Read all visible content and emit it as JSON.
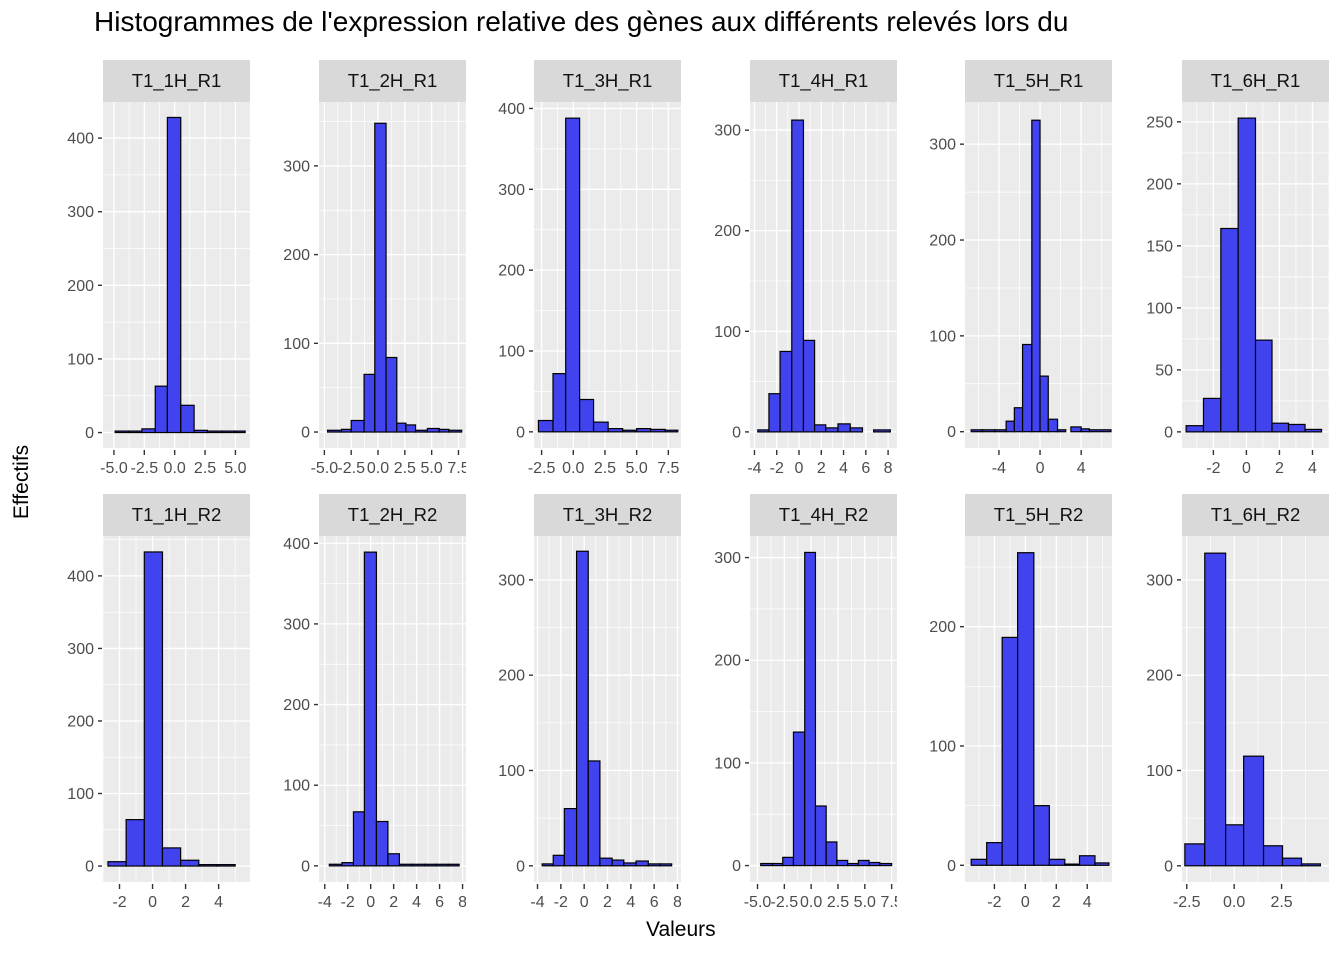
{
  "title": "Histogrammes de l'expression relative des gènes aux différents relevés lors du",
  "colors": {
    "bar_fill": "#4143EE",
    "bar_stroke": "#000000",
    "panel_bg": "#EBEBEB",
    "strip_bg": "#D9D9D9",
    "grid": "#FFFFFF",
    "axis_text": "#4D4D4D",
    "tick_mark": "#333333",
    "strip_text": "#111111",
    "title_text": "#000000"
  },
  "chart_data": {
    "type": "bar",
    "subtype": "faceted-histograms",
    "title": "Histogrammes de l'expression relative des gènes aux différents relevés lors du",
    "xlabel": "Valeurs",
    "ylabel": "Effectifs",
    "facet_rows": 2,
    "facet_cols": 6,
    "grid": "on",
    "legend": "none",
    "panels": [
      {
        "title": "T1_1H_R1",
        "x_domain": [
          -5.9,
          6.2
        ],
        "y_domain": [
          -21,
          449
        ],
        "x_ticks": [
          -5,
          -2.5,
          0,
          2.5,
          5
        ],
        "x_tick_labels": [
          "-5.0",
          "-2.5",
          "0.0",
          "2.5",
          "5.0"
        ],
        "y_ticks": [
          0,
          100,
          200,
          300,
          400
        ],
        "bars": [
          [
            -4.9,
            -3.8,
            2
          ],
          [
            -3.8,
            -2.7,
            2
          ],
          [
            -2.7,
            -1.6,
            5
          ],
          [
            -1.6,
            -0.6,
            63
          ],
          [
            -0.6,
            0.5,
            428
          ],
          [
            0.5,
            1.6,
            37
          ],
          [
            1.6,
            2.7,
            3
          ],
          [
            2.7,
            3.9,
            2
          ],
          [
            3.9,
            5.0,
            2
          ],
          [
            5.0,
            5.8,
            2
          ]
        ]
      },
      {
        "title": "T1_2H_R1",
        "x_domain": [
          -5.5,
          8.2
        ],
        "y_domain": [
          -18,
          372
        ],
        "x_ticks": [
          -5,
          -2.5,
          0,
          2.5,
          5,
          7.5
        ],
        "x_tick_labels": [
          "-5.0",
          "-2.5",
          "0.0",
          "2.5",
          "5.0",
          "7.5"
        ],
        "y_ticks": [
          0,
          100,
          200,
          300
        ],
        "bars": [
          [
            -4.7,
            -3.4,
            2
          ],
          [
            -3.4,
            -2.5,
            3
          ],
          [
            -2.5,
            -1.3,
            13
          ],
          [
            -1.3,
            -0.3,
            65
          ],
          [
            -0.3,
            0.75,
            348
          ],
          [
            0.75,
            1.75,
            84
          ],
          [
            1.75,
            2.6,
            10
          ],
          [
            2.6,
            3.5,
            8
          ],
          [
            3.5,
            4.6,
            2
          ],
          [
            4.6,
            5.7,
            4
          ],
          [
            5.7,
            6.6,
            3
          ],
          [
            6.6,
            7.8,
            2
          ]
        ]
      },
      {
        "title": "T1_3H_R1",
        "x_domain": [
          -3.1,
          8.5
        ],
        "y_domain": [
          -20,
          408
        ],
        "x_ticks": [
          -2.5,
          0,
          2.5,
          5,
          7.5
        ],
        "x_tick_labels": [
          "-2.5",
          "0.0",
          "2.5",
          "5.0",
          "7.5"
        ],
        "y_ticks": [
          0,
          100,
          200,
          300,
          400
        ],
        "bars": [
          [
            -2.75,
            -1.6,
            14
          ],
          [
            -1.6,
            -0.6,
            72
          ],
          [
            -0.6,
            0.5,
            388
          ],
          [
            0.5,
            1.6,
            40
          ],
          [
            1.6,
            2.75,
            12
          ],
          [
            2.75,
            3.9,
            4
          ],
          [
            3.9,
            5.0,
            2
          ],
          [
            5.0,
            6.1,
            4
          ],
          [
            6.1,
            7.25,
            3
          ],
          [
            7.25,
            8.25,
            2
          ]
        ]
      },
      {
        "title": "T1_4H_R1",
        "x_domain": [
          -4.4,
          8.8
        ],
        "y_domain": [
          -16,
          328
        ],
        "x_ticks": [
          -4,
          -2,
          0,
          2,
          4,
          6,
          8
        ],
        "x_tick_labels": [
          "-4",
          "-2",
          "0",
          "2",
          "4",
          "6",
          "8"
        ],
        "y_ticks": [
          0,
          100,
          200,
          300
        ],
        "bars": [
          [
            -3.7,
            -2.7,
            2
          ],
          [
            -2.7,
            -1.7,
            38
          ],
          [
            -1.7,
            -0.65,
            80
          ],
          [
            -0.65,
            0.4,
            310
          ],
          [
            0.4,
            1.4,
            91
          ],
          [
            1.4,
            2.4,
            7
          ],
          [
            2.4,
            3.5,
            4
          ],
          [
            3.5,
            4.6,
            8
          ],
          [
            4.6,
            5.7,
            4
          ],
          [
            6.7,
            8.2,
            2
          ]
        ]
      },
      {
        "title": "T1_5H_R1",
        "x_domain": [
          -7.3,
          7.0
        ],
        "y_domain": [
          -17,
          344
        ],
        "x_ticks": [
          -4,
          0,
          4
        ],
        "x_tick_labels": [
          "-4",
          "0",
          "4"
        ],
        "y_ticks": [
          0,
          100,
          200,
          300
        ],
        "bars": [
          [
            -6.7,
            -5.6,
            2
          ],
          [
            -5.6,
            -4.4,
            2
          ],
          [
            -4.4,
            -3.3,
            2
          ],
          [
            -3.3,
            -2.5,
            11
          ],
          [
            -2.5,
            -1.7,
            25
          ],
          [
            -1.7,
            -0.8,
            91
          ],
          [
            -0.8,
            0,
            325
          ],
          [
            0,
            0.8,
            58
          ],
          [
            0.8,
            1.7,
            13
          ],
          [
            1.7,
            2.5,
            2
          ],
          [
            3.0,
            4.0,
            5
          ],
          [
            4.0,
            4.8,
            3
          ],
          [
            4.8,
            6.9,
            2
          ]
        ]
      },
      {
        "title": "T1_6H_R1",
        "x_domain": [
          -3.9,
          5.0
        ],
        "y_domain": [
          -13,
          266
        ],
        "x_ticks": [
          -2,
          0,
          2,
          4
        ],
        "x_tick_labels": [
          "-2",
          "0",
          "2",
          "4"
        ],
        "y_ticks": [
          0,
          50,
          100,
          150,
          200,
          250
        ],
        "bars": [
          [
            -3.65,
            -2.6,
            5
          ],
          [
            -2.6,
            -1.55,
            27
          ],
          [
            -1.55,
            -0.5,
            164
          ],
          [
            -0.5,
            0.55,
            253
          ],
          [
            0.55,
            1.55,
            74
          ],
          [
            1.55,
            2.55,
            7
          ],
          [
            2.55,
            3.55,
            6
          ],
          [
            3.55,
            4.55,
            2
          ]
        ]
      },
      {
        "title": "T1_1H_R2",
        "x_domain": [
          -3.0,
          5.9
        ],
        "y_domain": [
          -22,
          455
        ],
        "x_ticks": [
          -2,
          0,
          2,
          4
        ],
        "x_tick_labels": [
          "-2",
          "0",
          "2",
          "4"
        ],
        "y_ticks": [
          0,
          100,
          200,
          300,
          400
        ],
        "bars": [
          [
            -2.7,
            -1.6,
            6
          ],
          [
            -1.6,
            -0.5,
            64
          ],
          [
            -0.5,
            0.6,
            433
          ],
          [
            0.6,
            1.7,
            25
          ],
          [
            1.7,
            2.8,
            8
          ],
          [
            2.8,
            3.9,
            2
          ],
          [
            3.9,
            5.0,
            2
          ]
        ]
      },
      {
        "title": "T1_2H_R2",
        "x_domain": [
          -4.5,
          8.3
        ],
        "y_domain": [
          -20,
          409
        ],
        "x_ticks": [
          -4,
          -2,
          0,
          2,
          4,
          6,
          8
        ],
        "x_tick_labels": [
          "-4",
          "-2",
          "0",
          "2",
          "4",
          "6",
          "8"
        ],
        "y_ticks": [
          0,
          100,
          200,
          300,
          400
        ],
        "bars": [
          [
            -3.6,
            -2.5,
            2
          ],
          [
            -2.5,
            -1.5,
            4
          ],
          [
            -1.5,
            -0.55,
            67
          ],
          [
            -0.55,
            0.5,
            389
          ],
          [
            0.5,
            1.5,
            55
          ],
          [
            1.5,
            2.5,
            15
          ],
          [
            2.5,
            3.6,
            2
          ],
          [
            3.6,
            4.7,
            2
          ],
          [
            4.7,
            5.7,
            2
          ],
          [
            5.7,
            6.75,
            2
          ],
          [
            6.75,
            7.7,
            2
          ]
        ]
      },
      {
        "title": "T1_3H_R2",
        "x_domain": [
          -4.3,
          8.3
        ],
        "y_domain": [
          -17,
          346
        ],
        "x_ticks": [
          -4,
          -2,
          0,
          2,
          4,
          6,
          8
        ],
        "x_tick_labels": [
          "-4",
          "-2",
          "0",
          "2",
          "4",
          "6",
          "8"
        ],
        "y_ticks": [
          0,
          100,
          200,
          300
        ],
        "bars": [
          [
            -3.6,
            -2.65,
            2
          ],
          [
            -2.65,
            -1.7,
            11
          ],
          [
            -1.7,
            -0.65,
            60
          ],
          [
            -0.65,
            0.35,
            330
          ],
          [
            0.35,
            1.35,
            110
          ],
          [
            1.35,
            2.4,
            8
          ],
          [
            2.4,
            3.4,
            6
          ],
          [
            3.4,
            4.45,
            3
          ],
          [
            4.45,
            5.5,
            5
          ],
          [
            5.5,
            6.5,
            2
          ],
          [
            6.5,
            7.5,
            2
          ]
        ]
      },
      {
        "title": "T1_4H_R2",
        "x_domain": [
          -5.7,
          8.0
        ],
        "y_domain": [
          -16,
          321
        ],
        "x_ticks": [
          -5,
          -2.5,
          0,
          2.5,
          5,
          7.5
        ],
        "x_tick_labels": [
          "-5.0",
          "-2.5",
          "0.0",
          "2.5",
          "5.0",
          "7.5"
        ],
        "y_ticks": [
          0,
          100,
          200,
          300
        ],
        "bars": [
          [
            -4.7,
            -3.6,
            2
          ],
          [
            -3.6,
            -2.65,
            2
          ],
          [
            -2.65,
            -1.65,
            8
          ],
          [
            -1.65,
            -0.6,
            130
          ],
          [
            -0.6,
            0.4,
            305
          ],
          [
            0.4,
            1.4,
            58
          ],
          [
            1.4,
            2.4,
            23
          ],
          [
            2.4,
            3.4,
            5
          ],
          [
            3.4,
            4.4,
            2
          ],
          [
            4.4,
            5.4,
            5
          ],
          [
            5.4,
            6.4,
            3
          ],
          [
            6.4,
            7.5,
            2
          ]
        ]
      },
      {
        "title": "T1_5H_R2",
        "x_domain": [
          -3.9,
          5.6
        ],
        "y_domain": [
          -14,
          276
        ],
        "x_ticks": [
          -2,
          0,
          2,
          4
        ],
        "x_tick_labels": [
          "-2",
          "0",
          "2",
          "4"
        ],
        "y_ticks": [
          0,
          100,
          200
        ],
        "bars": [
          [
            -3.5,
            -2.5,
            5
          ],
          [
            -2.5,
            -1.5,
            19
          ],
          [
            -1.5,
            -0.5,
            191
          ],
          [
            -0.5,
            0.55,
            262
          ],
          [
            0.55,
            1.55,
            50
          ],
          [
            1.55,
            2.55,
            5
          ],
          [
            2.55,
            3.5,
            1
          ],
          [
            3.5,
            4.5,
            8
          ],
          [
            4.5,
            5.4,
            2
          ]
        ]
      },
      {
        "title": "T1_6H_R2",
        "x_domain": [
          -2.75,
          5.0
        ],
        "y_domain": [
          -17,
          346
        ],
        "x_ticks": [
          -2.5,
          0,
          2.5
        ],
        "x_tick_labels": [
          "-2.5",
          "0.0",
          "2.5"
        ],
        "y_ticks": [
          0,
          100,
          200,
          300
        ],
        "bars": [
          [
            -2.6,
            -1.55,
            23
          ],
          [
            -1.55,
            -0.45,
            328
          ],
          [
            -0.45,
            0.5,
            43
          ],
          [
            0.5,
            1.55,
            115
          ],
          [
            1.55,
            2.55,
            21
          ],
          [
            2.55,
            3.55,
            8
          ],
          [
            3.55,
            4.55,
            2
          ]
        ]
      }
    ]
  }
}
